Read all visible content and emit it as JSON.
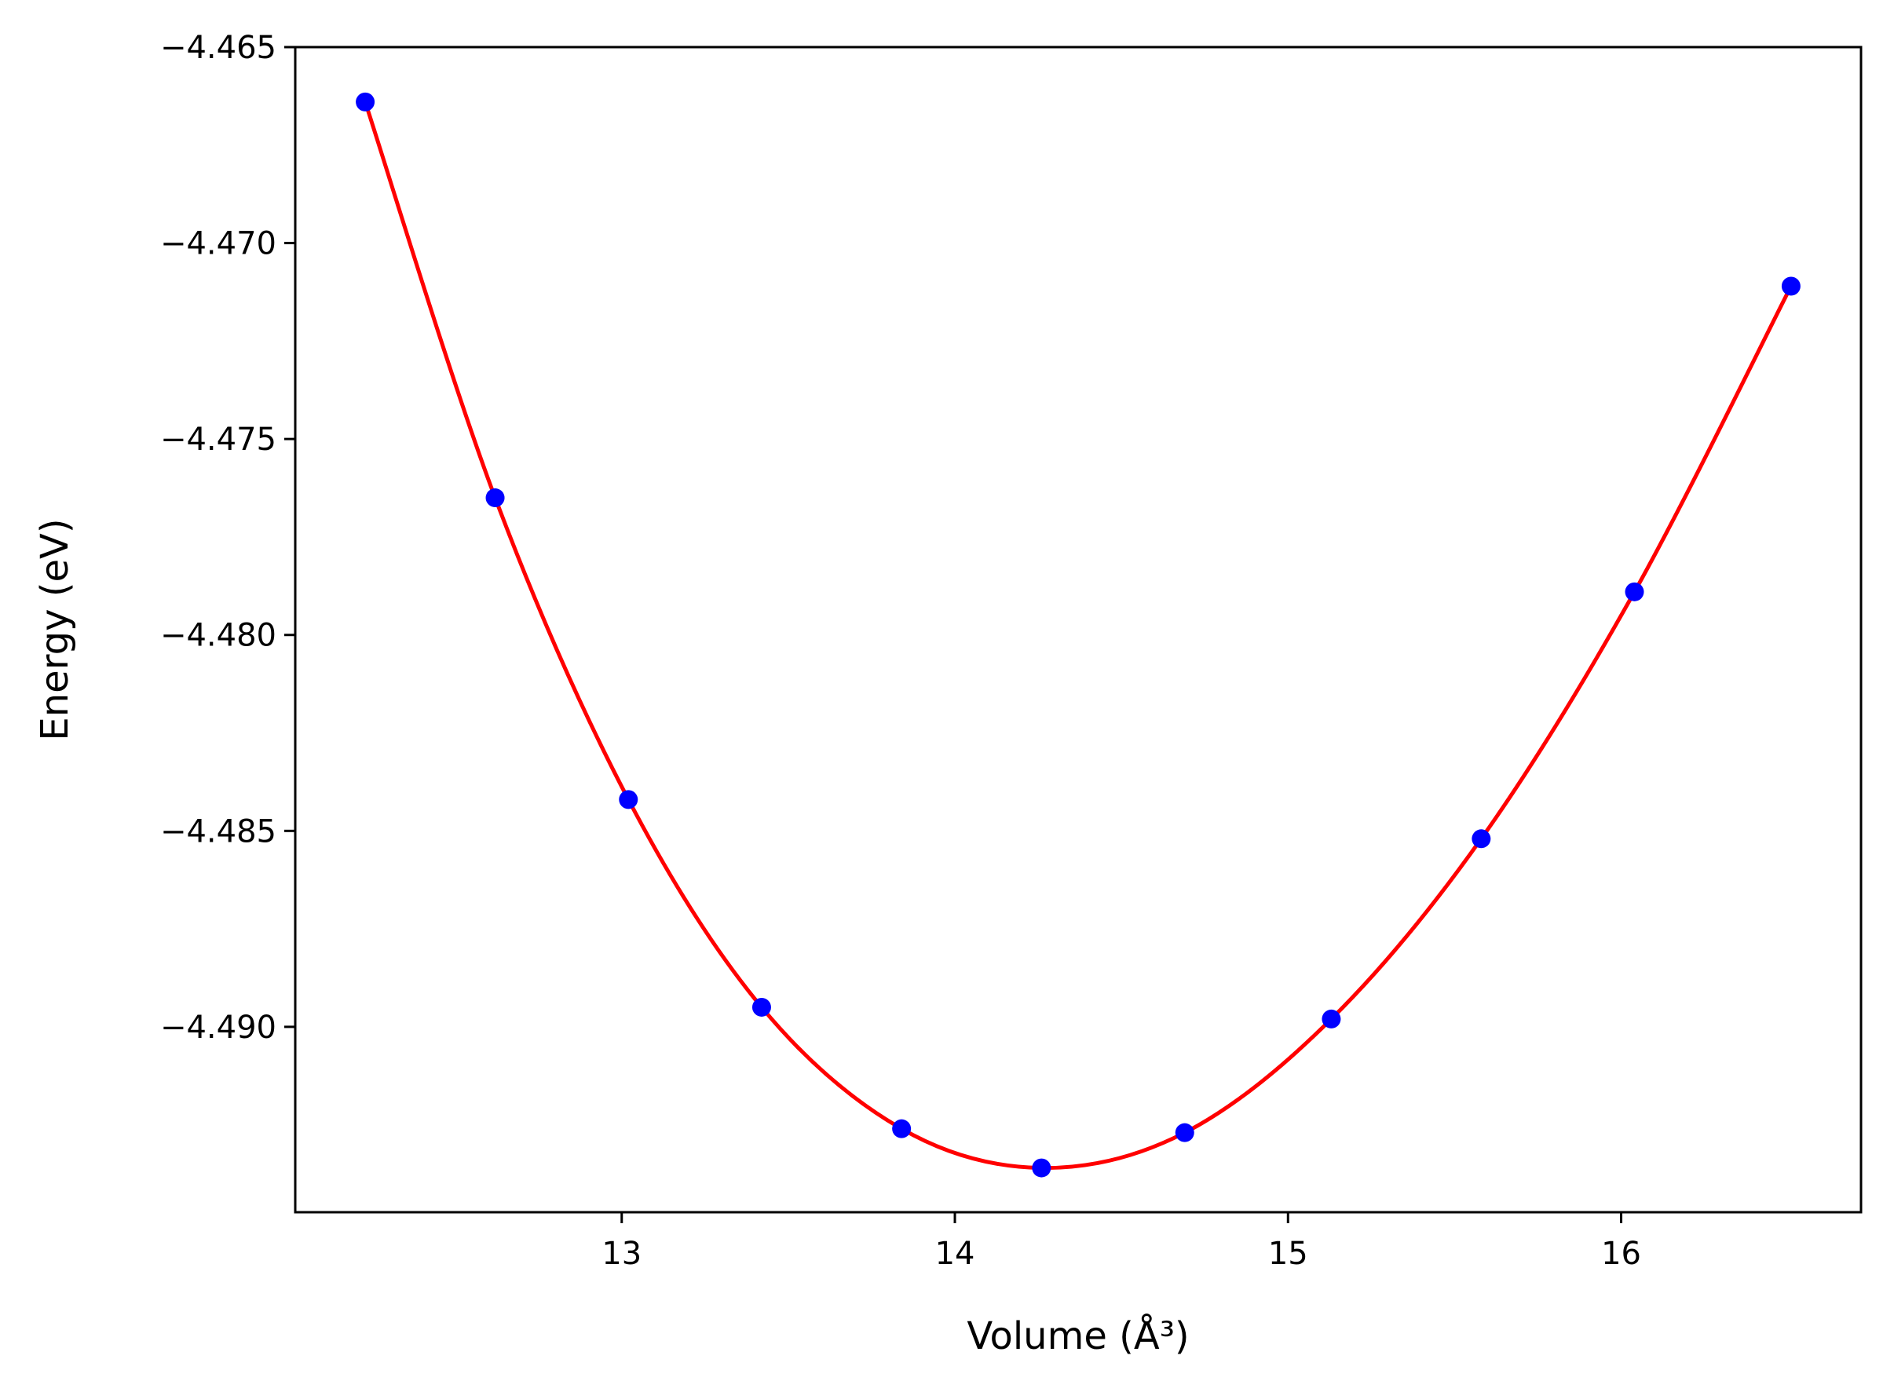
{
  "chart_data": {
    "type": "scatter",
    "xlabel": "Volume (Å³)",
    "ylabel": "Energy (eV)",
    "xlim": [
      12.02,
      16.72
    ],
    "ylim": [
      -4.49473,
      -4.465
    ],
    "xticks": [
      13,
      14,
      15,
      16
    ],
    "xtick_labels": [
      "13",
      "14",
      "15",
      "16"
    ],
    "yticks": [
      -4.465,
      -4.47,
      -4.475,
      -4.48,
      -4.485,
      -4.49
    ],
    "ytick_labels": [
      "−4.465",
      "−4.470",
      "−4.475",
      "−4.480",
      "−4.485",
      "−4.490"
    ],
    "grid": false,
    "legend": "none",
    "series": [
      {
        "kind": "points",
        "color": "#0000ff",
        "x": [
          12.23,
          12.62,
          13.02,
          13.42,
          13.84,
          14.26,
          14.69,
          15.13,
          15.58,
          16.04,
          16.51
        ],
        "y": [
          -4.4664,
          -4.4765,
          -4.4842,
          -4.4895,
          -4.4926,
          -4.4936,
          -4.4927,
          -4.4898,
          -4.4852,
          -4.4789,
          -4.4711
        ]
      },
      {
        "kind": "fit-line",
        "color": "#ff0000"
      }
    ]
  }
}
